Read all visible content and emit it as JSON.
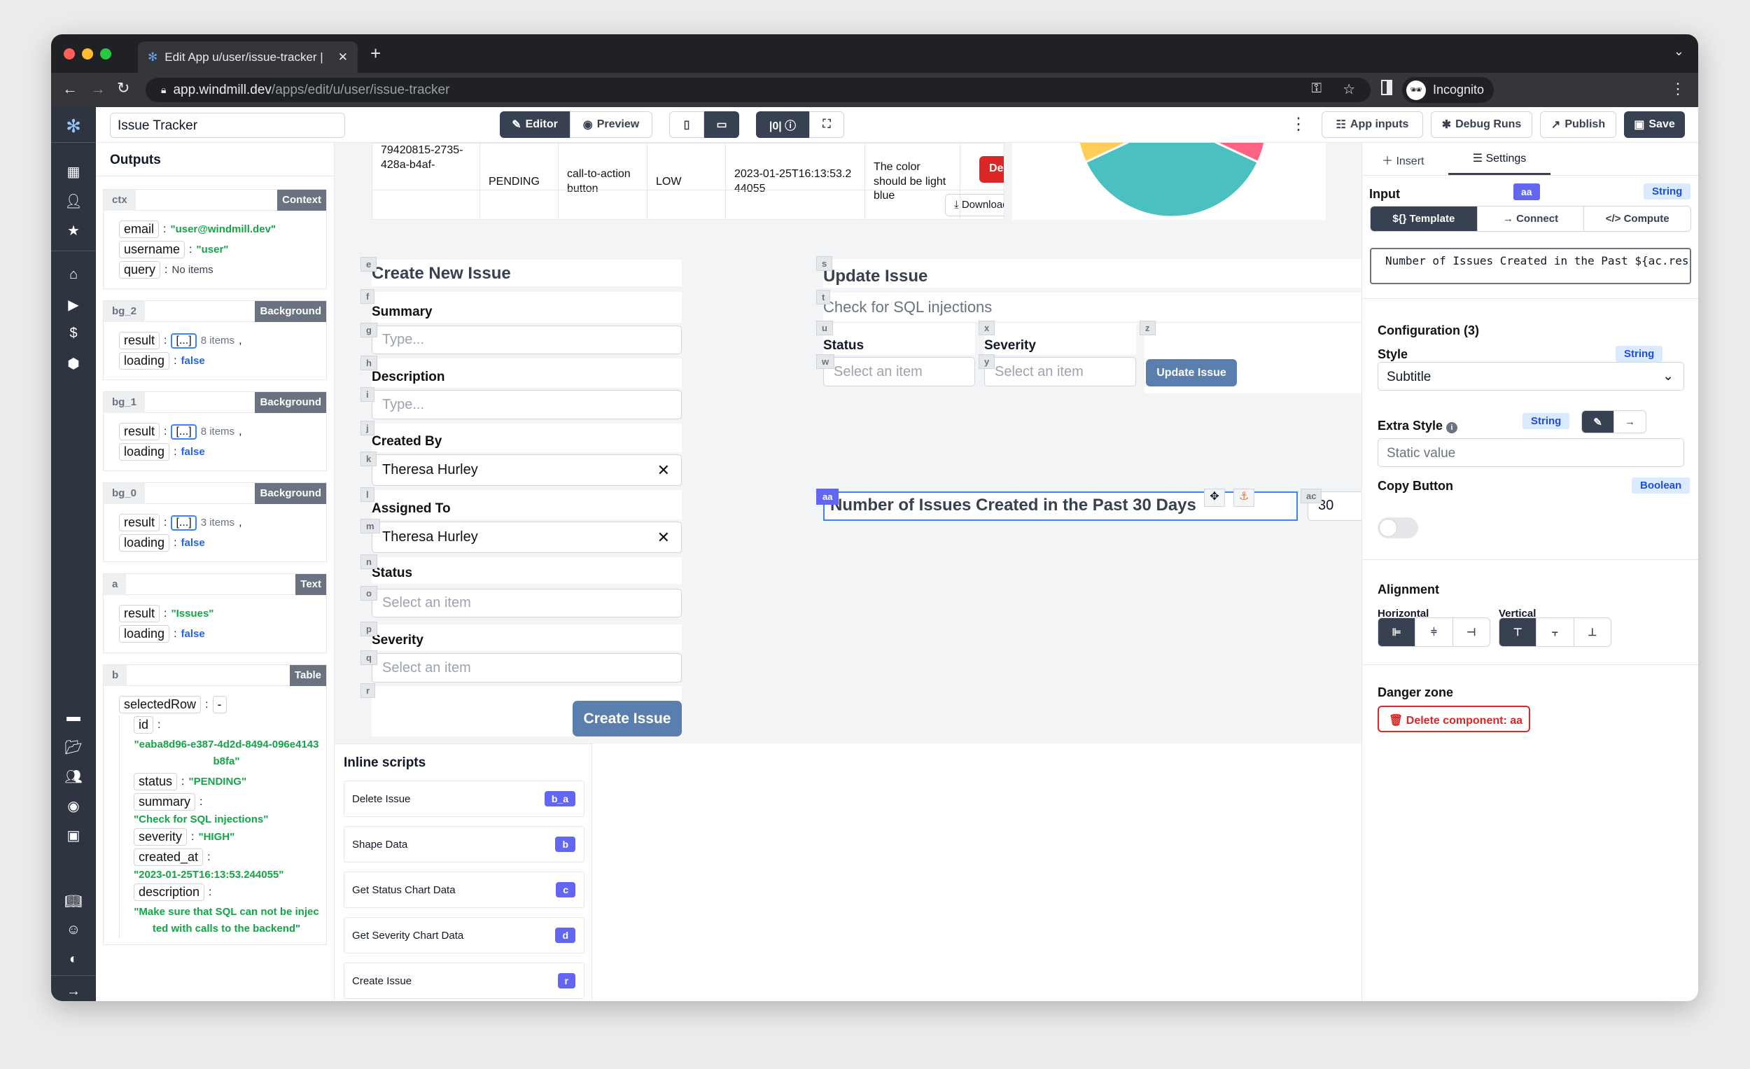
{
  "browser": {
    "tab_title": "Edit App u/user/issue-tracker |",
    "url_host": "app.windmill.dev",
    "url_path": "/apps/edit/u/user/issue-tracker",
    "profile": "Incognito"
  },
  "toolbar": {
    "app_name": "Issue Tracker",
    "editor": "Editor",
    "preview": "Preview",
    "app_inputs": "App inputs",
    "debug_runs": "Debug Runs",
    "publish": "Publish",
    "save": "Save"
  },
  "outputs": {
    "title": "Outputs",
    "ctx": {
      "id": "ctx",
      "type": "Context",
      "email_key": "email",
      "email": "\"user@windmill.dev\"",
      "username_key": "username",
      "username": "\"user\"",
      "query_key": "query",
      "query": "No items"
    },
    "bgs": [
      {
        "id": "bg_2",
        "type": "Background",
        "result_key": "result",
        "arr": "[...]",
        "count": "8 items",
        "loading_key": "loading",
        "loading": "false"
      },
      {
        "id": "bg_1",
        "type": "Background",
        "result_key": "result",
        "arr": "[...]",
        "count": "8 items",
        "loading_key": "loading",
        "loading": "false"
      },
      {
        "id": "bg_0",
        "type": "Background",
        "result_key": "result",
        "arr": "[...]",
        "count": "3 items",
        "loading_key": "loading",
        "loading": "false"
      }
    ],
    "a": {
      "id": "a",
      "type": "Text",
      "result_key": "result",
      "result": "\"Issues\"",
      "loading_key": "loading",
      "loading": "false"
    },
    "b": {
      "id": "b",
      "type": "Table",
      "selected_key": "selectedRow",
      "selected": "-",
      "id_key": "id",
      "id_val": "\"eaba8d96-e387-4d2d-8494-096e4143b8fa\"",
      "status_key": "status",
      "status": "\"PENDING\"",
      "summary_key": "summary",
      "summary": "\"Check for SQL injections\"",
      "severity_key": "severity",
      "severity": "\"HIGH\"",
      "created_key": "created_at",
      "created": "\"2023-01-25T16:13:53.244055\"",
      "desc_key": "description",
      "desc": "\"Make sure that SQL can not be injected with calls to the backend\""
    }
  },
  "table": {
    "row": {
      "id": "79420815-2735-428a-b4af-",
      "status": "PENDING",
      "summary": "call-to-action button",
      "severity": "LOW",
      "created_at": "2023-01-25T16:13:53.244055",
      "description": "The color should be light blue",
      "delete": "Delete"
    },
    "download": "Download"
  },
  "pie": {
    "colors": [
      "#4bc0c0",
      "#ffcd56",
      "#ff6384"
    ]
  },
  "create_form": {
    "title": "Create New Issue",
    "summary_label": "Summary",
    "summary_ph": "Type...",
    "desc_label": "Description",
    "desc_ph": "Type...",
    "created_by_label": "Created By",
    "created_by": "Theresa Hurley",
    "assigned_label": "Assigned To",
    "assigned": "Theresa Hurley",
    "status_label": "Status",
    "status_ph": "Select an item",
    "severity_label": "Severity",
    "severity_ph": "Select an item",
    "submit": "Create Issue",
    "badges": [
      "e",
      "f",
      "g",
      "h",
      "i",
      "j",
      "k",
      "l",
      "m",
      "n",
      "o",
      "p",
      "q",
      "r"
    ]
  },
  "update_form": {
    "title": "Update Issue",
    "summary": "Check for SQL injections",
    "status_label": "Status",
    "severity_label": "Severity",
    "status_ph": "Select an item",
    "severity_ph": "Select an item",
    "submit": "Update Issue",
    "badges": [
      "s",
      "t",
      "u",
      "x",
      "z",
      "w",
      "y"
    ]
  },
  "text_aa": {
    "id": "aa",
    "text": "Number of Issues Created in the Past 30 Days",
    "ac_id": "ac",
    "ac_value": "30"
  },
  "scripts": {
    "title": "Inline scripts",
    "items": [
      {
        "label": "Delete Issue",
        "tag": "b_a"
      },
      {
        "label": "Shape Data",
        "tag": "b"
      },
      {
        "label": "Get Status Chart Data",
        "tag": "c"
      },
      {
        "label": "Get Severity Chart Data",
        "tag": "d"
      },
      {
        "label": "Create Issue",
        "tag": "r"
      }
    ]
  },
  "panel": {
    "insert": "Insert",
    "settings": "Settings",
    "input_label": "Input",
    "component_id": "aa",
    "input_type": "String",
    "modes": [
      "${} Template",
      "→ Connect",
      "</> Compute"
    ],
    "template_code": "Number of Issues Created in the Past ${ac.resu",
    "config_title": "Configuration (3)",
    "style_label": "Style",
    "style_type": "String",
    "style_value": "Subtitle",
    "extra_label": "Extra Style",
    "extra_type": "String",
    "extra_ph": "Static value",
    "copy_label": "Copy Button",
    "copy_type": "Boolean",
    "copy_on": false,
    "align_title": "Alignment",
    "horizontal": "Horizontal",
    "vertical": "Vertical",
    "danger_title": "Danger zone",
    "delete_label": "Delete component: aa"
  }
}
